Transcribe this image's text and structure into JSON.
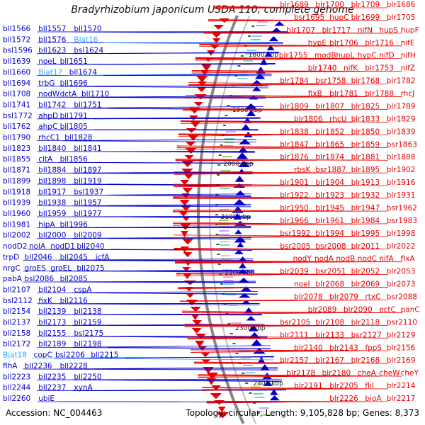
{
  "title": "Bradyrhizobium japonicum USDA 110, complete genome",
  "footer": {
    "accession": "Accession: NC_004463",
    "summary": "Topology: circular; Length: 9,105,828 bp; Genes: 8,373"
  },
  "colors": {
    "minus_strand": "#0000cc",
    "plus_strand": "#e80000",
    "special_gene": "#33aaff",
    "backbone": "#888888",
    "tick_mark": "#1a7a1a"
  },
  "ticks": [
    "1800 kbp",
    "1900 kbp",
    "2000 kbp",
    "2100 kbp",
    "2200 kbp",
    "2300 kbp",
    "2400 kbp"
  ],
  "left_labels": [
    {
      "text": "bll1566",
      "type": "bll"
    },
    {
      "text": "bll1557",
      "type": "bll"
    },
    {
      "text": "bll1570",
      "type": "bll"
    },
    {
      "text": "bll1572",
      "type": "bll"
    },
    {
      "text": "bll1576",
      "type": "bll"
    },
    {
      "text": "Bjat16",
      "type": "special"
    },
    {
      "text": "bsl1596",
      "type": "bll"
    },
    {
      "text": "bll1623",
      "type": "bll"
    },
    {
      "text": "bsl1624",
      "type": "bll"
    },
    {
      "text": "bll1639",
      "type": "bll"
    },
    {
      "text": "noeL",
      "type": "bll"
    },
    {
      "text": "bll1651",
      "type": "bll"
    },
    {
      "text": "bll1660",
      "type": "bll"
    },
    {
      "text": "Bjat17",
      "type": "special"
    },
    {
      "text": "bll1674",
      "type": "bll"
    },
    {
      "text": "bll1694",
      "type": "bll"
    },
    {
      "text": "trbG",
      "type": "bll"
    },
    {
      "text": "bll1696",
      "type": "bll"
    },
    {
      "text": "bll1708",
      "type": "bll"
    },
    {
      "text": "nodW",
      "type": "bll"
    },
    {
      "text": "dctA",
      "type": "bll"
    },
    {
      "text": "bll1710",
      "type": "bll"
    },
    {
      "text": "bll1741",
      "type": "bll"
    },
    {
      "text": "bll1742",
      "type": "bll"
    },
    {
      "text": "bll1751",
      "type": "bll"
    },
    {
      "text": "bsl1772",
      "type": "bll"
    },
    {
      "text": "ahpD",
      "type": "bll"
    },
    {
      "text": "bll1791",
      "type": "bll"
    },
    {
      "text": "bll1762",
      "type": "bll"
    },
    {
      "text": "ahpC",
      "type": "bll"
    },
    {
      "text": "bll1805",
      "type": "bll"
    },
    {
      "text": "bll1790",
      "type": "bll"
    },
    {
      "text": "rhcC1",
      "type": "bll"
    },
    {
      "text": "bll1828",
      "type": "bll"
    },
    {
      "text": "bll1823",
      "type": "bll"
    },
    {
      "text": "bll1840",
      "type": "bll"
    },
    {
      "text": "bll1841",
      "type": "bll"
    },
    {
      "text": "bll1855",
      "type": "bll"
    },
    {
      "text": "citA",
      "type": "bll"
    },
    {
      "text": "bll1856",
      "type": "bll"
    },
    {
      "text": "bll1871",
      "type": "bll"
    },
    {
      "text": "bll1884",
      "type": "bll"
    },
    {
      "text": "bll1897",
      "type": "bll"
    },
    {
      "text": "bll1899",
      "type": "bll"
    },
    {
      "text": "bll1898",
      "type": "bll"
    },
    {
      "text": "bll1919",
      "type": "bll"
    },
    {
      "text": "bll1918",
      "type": "bll"
    },
    {
      "text": "bll1917",
      "type": "bll"
    },
    {
      "text": "bsl1937",
      "type": "bll"
    },
    {
      "text": "bll1939",
      "type": "bll"
    },
    {
      "text": "bll1938",
      "type": "bll"
    },
    {
      "text": "bll1957",
      "type": "bll"
    },
    {
      "text": "bll1960",
      "type": "bll"
    },
    {
      "text": "bll1959",
      "type": "bll"
    },
    {
      "text": "bll1977",
      "type": "bll"
    },
    {
      "text": "bll1981",
      "type": "bll"
    },
    {
      "text": "hipA",
      "type": "bll"
    },
    {
      "text": "bll1996",
      "type": "bll"
    },
    {
      "text": "bll2002",
      "type": "bll"
    },
    {
      "text": "bll2000",
      "type": "bll"
    },
    {
      "text": "bll2009",
      "type": "bll"
    },
    {
      "text": "nodD2",
      "type": "bll"
    },
    {
      "text": "nolA",
      "type": "bll"
    },
    {
      "text": "nodD1",
      "type": "bll"
    },
    {
      "text": "bll2040",
      "type": "bll"
    },
    {
      "text": "trpD",
      "type": "bll"
    },
    {
      "text": "bll2046",
      "type": "bll"
    },
    {
      "text": "bll2045",
      "type": "bll"
    },
    {
      "text": "icfA",
      "type": "bll"
    },
    {
      "text": "nrgC",
      "type": "bll"
    },
    {
      "text": "groES",
      "type": "bll"
    },
    {
      "text": "groEL",
      "type": "bll"
    },
    {
      "text": "bll2075",
      "type": "bll"
    },
    {
      "text": "pabA",
      "type": "bll"
    },
    {
      "text": "bsl2086",
      "type": "bll"
    },
    {
      "text": "bll2085",
      "type": "bll"
    },
    {
      "text": "bll2107",
      "type": "bll"
    },
    {
      "text": "bll2104",
      "type": "bll"
    },
    {
      "text": "cspA",
      "type": "bll"
    },
    {
      "text": "bsl2112",
      "type": "bll"
    },
    {
      "text": "fixK",
      "type": "bll"
    },
    {
      "text": "bll2116",
      "type": "bll"
    },
    {
      "text": "bll2154",
      "type": "bll"
    },
    {
      "text": "bll2139",
      "type": "bll"
    },
    {
      "text": "bll2138",
      "type": "bll"
    },
    {
      "text": "bll2137",
      "type": "bll"
    },
    {
      "text": "bll2173",
      "type": "bll"
    },
    {
      "text": "bll2159",
      "type": "bll"
    },
    {
      "text": "bll2158",
      "type": "bll"
    },
    {
      "text": "bll2155",
      "type": "bll"
    },
    {
      "text": "bsl2175",
      "type": "bll"
    },
    {
      "text": "bll2172",
      "type": "bll"
    },
    {
      "text": "bll2189",
      "type": "bll"
    },
    {
      "text": "bll2198",
      "type": "bll"
    },
    {
      "text": "Bjat18",
      "type": "special"
    },
    {
      "text": "copC",
      "type": "bll"
    },
    {
      "text": "bsl2206",
      "type": "bll"
    },
    {
      "text": "bll2215",
      "type": "bll"
    },
    {
      "text": "flhA",
      "type": "bll"
    },
    {
      "text": "bll2236",
      "type": "bll"
    },
    {
      "text": "bll2228",
      "type": "bll"
    },
    {
      "text": "bll2223",
      "type": "bll"
    },
    {
      "text": "bll2235",
      "type": "bll"
    },
    {
      "text": "bll2250",
      "type": "bll"
    },
    {
      "text": "bll2244",
      "type": "bll"
    },
    {
      "text": "bll2237",
      "type": "bll"
    },
    {
      "text": "xynA",
      "type": "bll"
    },
    {
      "text": "bll2260",
      "type": "bll"
    },
    {
      "text": "ubiE",
      "type": "bll"
    }
  ],
  "right_labels": [
    {
      "text": "blr1689"
    },
    {
      "text": "blr1700"
    },
    {
      "text": "blr1709"
    },
    {
      "text": "blr1686"
    },
    {
      "text": "bsr1695"
    },
    {
      "text": "hupC"
    },
    {
      "text": "blr1699"
    },
    {
      "text": "blr1705"
    },
    {
      "text": "blr1707"
    },
    {
      "text": "blr1717"
    },
    {
      "text": "nifN"
    },
    {
      "text": "hupS"
    },
    {
      "text": "hupF"
    },
    {
      "text": "hypE"
    },
    {
      "text": "blr1706"
    },
    {
      "text": "blr1716"
    },
    {
      "text": "nifE"
    },
    {
      "text": "blr1755"
    },
    {
      "text": "modB"
    },
    {
      "text": "hupL"
    },
    {
      "text": "hypC"
    },
    {
      "text": "nifD"
    },
    {
      "text": "nifH"
    },
    {
      "text": "blr1740"
    },
    {
      "text": "nifK"
    },
    {
      "text": "blr1753"
    },
    {
      "text": "nifZ"
    },
    {
      "text": "blr1784"
    },
    {
      "text": "bsr1758"
    },
    {
      "text": "blr1768"
    },
    {
      "text": "blr1782"
    },
    {
      "text": "fixB"
    },
    {
      "text": "blr1781"
    },
    {
      "text": "blr1788"
    },
    {
      "text": "rhcJ"
    },
    {
      "text": "blr1809"
    },
    {
      "text": "blr1807"
    },
    {
      "text": "blr1825"
    },
    {
      "text": "blr1789"
    },
    {
      "text": "blr1806"
    },
    {
      "text": "rhcU"
    },
    {
      "text": "blr1833"
    },
    {
      "text": "blr1829"
    },
    {
      "text": "blr1838"
    },
    {
      "text": "blr1852"
    },
    {
      "text": "blr1850"
    },
    {
      "text": "blr1839"
    },
    {
      "text": "blr1847"
    },
    {
      "text": "blr1865"
    },
    {
      "text": "blr1859"
    },
    {
      "text": "bsr1863"
    },
    {
      "text": "blr1876"
    },
    {
      "text": "blr1874"
    },
    {
      "text": "blr1881"
    },
    {
      "text": "blr1888"
    },
    {
      "text": "rbsK"
    },
    {
      "text": "bsr1887"
    },
    {
      "text": "blr1895"
    },
    {
      "text": "blr1902"
    },
    {
      "text": "blr1901"
    },
    {
      "text": "blr1904"
    },
    {
      "text": "blr1913"
    },
    {
      "text": "blr1916"
    },
    {
      "text": "blr1922"
    },
    {
      "text": "blr1923"
    },
    {
      "text": "blr1932"
    },
    {
      "text": "blr1931"
    },
    {
      "text": "blr1950"
    },
    {
      "text": "blr1945"
    },
    {
      "text": "blr1947"
    },
    {
      "text": "bsr1962"
    },
    {
      "text": "blr1966"
    },
    {
      "text": "blr1961"
    },
    {
      "text": "blr1984"
    },
    {
      "text": "bsr1983"
    },
    {
      "text": "bsr1992"
    },
    {
      "text": "blr1994"
    },
    {
      "text": "blr1995"
    },
    {
      "text": "blr1998"
    },
    {
      "text": "bsr2005"
    },
    {
      "text": "bsr2008"
    },
    {
      "text": "blr2011"
    },
    {
      "text": "blr2022"
    },
    {
      "text": "nodY"
    },
    {
      "text": "nodA"
    },
    {
      "text": "nodB"
    },
    {
      "text": "nodC"
    },
    {
      "text": "nifA"
    },
    {
      "text": "fixA"
    },
    {
      "text": "blr2039"
    },
    {
      "text": "bsr2051"
    },
    {
      "text": "blr2052"
    },
    {
      "text": "blr2053"
    },
    {
      "text": "noeI"
    },
    {
      "text": "blr2068"
    },
    {
      "text": "blr2069"
    },
    {
      "text": "blr2073"
    },
    {
      "text": "blr2078"
    },
    {
      "text": "blr2079"
    },
    {
      "text": "rtxC"
    },
    {
      "text": "bsr2088"
    },
    {
      "text": "blr2089"
    },
    {
      "text": "blr2090"
    },
    {
      "text": "ectC"
    },
    {
      "text": "panC"
    },
    {
      "text": "bsr2105"
    },
    {
      "text": "blr2108"
    },
    {
      "text": "blr2118"
    },
    {
      "text": "bsr2110"
    },
    {
      "text": "blr2111"
    },
    {
      "text": "blr2133"
    },
    {
      "text": "bsr2127"
    },
    {
      "text": "blr2129"
    },
    {
      "text": "blr2140"
    },
    {
      "text": "blr2143"
    },
    {
      "text": "fppS"
    },
    {
      "text": "blr2156"
    },
    {
      "text": "blr2157"
    },
    {
      "text": "blr2167"
    },
    {
      "text": "blr2168"
    },
    {
      "text": "blr2169"
    },
    {
      "text": "blr2178"
    },
    {
      "text": "blr2180"
    },
    {
      "text": "cheA"
    },
    {
      "text": "cheW"
    },
    {
      "text": "cheY"
    },
    {
      "text": "blr2191"
    },
    {
      "text": "blr2205"
    },
    {
      "text": "fliI"
    },
    {
      "text": "blr2214"
    },
    {
      "text": "blr2226"
    },
    {
      "text": "bioA"
    },
    {
      "text": "blr2217"
    }
  ]
}
